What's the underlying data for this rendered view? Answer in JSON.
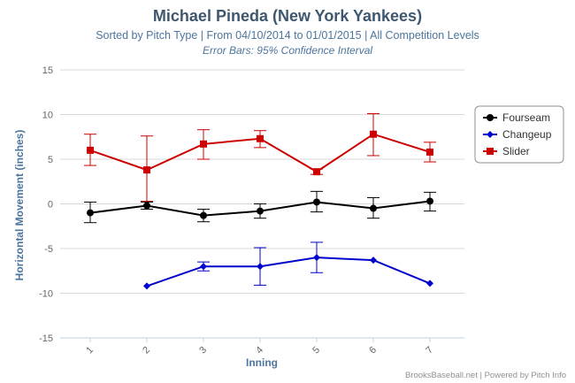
{
  "chart_data": {
    "type": "line",
    "title": "Michael Pineda (New York Yankees)",
    "subtitle": "Sorted by Pitch Type | From 04/10/2014 to 01/01/2015 | All Competition Levels",
    "subtitle2": "Error Bars: 95% Confidence Interval",
    "xlabel": "Inning",
    "ylabel": "Horizontal Movement (inches)",
    "categories": [
      "1",
      "2",
      "3",
      "4",
      "5",
      "6",
      "7"
    ],
    "ylim": [
      -15,
      15
    ],
    "yticks": [
      -15,
      -10,
      -5,
      0,
      5,
      10,
      15
    ],
    "grid": true,
    "legend_position": "right",
    "series": [
      {
        "name": "Fourseam",
        "color": "#000000",
        "marker": "circle",
        "values": [
          -1.0,
          -0.2,
          -1.3,
          -0.8,
          0.2,
          -0.5,
          0.3
        ],
        "errors": [
          [
            -2.1,
            0.2
          ],
          [
            -0.6,
            0.2
          ],
          [
            -2.0,
            -0.6
          ],
          [
            -1.6,
            0.0
          ],
          [
            -0.9,
            1.4
          ],
          [
            -1.6,
            0.7
          ],
          [
            -0.8,
            1.3
          ]
        ]
      },
      {
        "name": "Changeup",
        "color": "#0000cc",
        "marker": "diamond",
        "values": [
          null,
          -9.2,
          -7.0,
          -7.0,
          -6.0,
          -6.3,
          -8.9
        ],
        "errors": [
          null,
          [
            -9.2,
            -9.2
          ],
          [
            -7.5,
            -6.5
          ],
          [
            -9.1,
            -4.9
          ],
          [
            -7.7,
            -4.3
          ],
          [
            -6.3,
            -6.3
          ],
          [
            -8.9,
            -8.9
          ]
        ]
      },
      {
        "name": "Slider",
        "color": "#cc0000",
        "marker": "square",
        "values": [
          6.0,
          3.8,
          6.7,
          7.3,
          3.6,
          7.8,
          5.8
        ],
        "errors": [
          [
            4.3,
            7.8
          ],
          [
            0.3,
            7.6
          ],
          [
            5.0,
            8.3
          ],
          [
            6.3,
            8.2
          ],
          [
            3.3,
            3.9
          ],
          [
            5.4,
            10.1
          ],
          [
            4.7,
            6.9
          ]
        ]
      }
    ]
  },
  "credit": "BrooksBaseball.net | Powered by Pitch Info"
}
